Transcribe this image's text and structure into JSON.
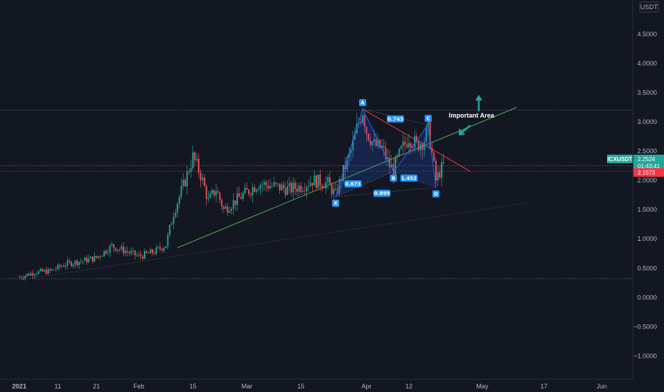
{
  "chart_data": {
    "type": "candlestick",
    "currency": "USDT",
    "ylim": [
      -1.25,
      4.9
    ],
    "y_ticks": [
      "4.5000",
      "4.0000",
      "3.5000",
      "3.0000",
      "2.5000",
      "2.0000",
      "1.5000",
      "1.0000",
      "0.5000",
      "0.0000",
      "−0.5000",
      "−1.0000"
    ],
    "y_tick_values": [
      4.5,
      4.0,
      3.5,
      3.0,
      2.5,
      2.0,
      1.5,
      1.0,
      0.5,
      0.0,
      -0.5,
      -1.0
    ],
    "x_ticks": [
      "2021",
      "11",
      "21",
      "Feb",
      "15",
      "Mar",
      "15",
      "Apr",
      "12",
      "May",
      "17",
      "Jun"
    ],
    "x_tick_days": [
      0,
      10,
      20,
      31,
      45,
      59,
      73,
      90,
      101,
      120,
      136,
      151
    ],
    "x_range_days": [
      -5,
      159
    ],
    "bull_color": "#26a69a",
    "bear_color": "#ef5350",
    "price_tag": {
      "symbol": "ICXUSDT",
      "value": "2.2524",
      "countdown": "01:43:41",
      "color": "#26a69a"
    },
    "red_tag": {
      "value": "2.1573",
      "color": "#f23645"
    },
    "closes": [
      {
        "day": 0,
        "close": 0.35
      },
      {
        "day": 4,
        "close": 0.43
      },
      {
        "day": 8,
        "close": 0.45
      },
      {
        "day": 12,
        "close": 0.57
      },
      {
        "day": 16,
        "close": 0.62
      },
      {
        "day": 20,
        "close": 0.68
      },
      {
        "day": 24,
        "close": 0.88
      },
      {
        "day": 28,
        "close": 0.78
      },
      {
        "day": 31,
        "close": 0.7
      },
      {
        "day": 35,
        "close": 0.78
      },
      {
        "day": 38,
        "close": 0.9
      },
      {
        "day": 40,
        "close": 1.45
      },
      {
        "day": 43,
        "close": 2.0
      },
      {
        "day": 45,
        "close": 2.4
      },
      {
        "day": 47,
        "close": 2.1
      },
      {
        "day": 49,
        "close": 1.65
      },
      {
        "day": 51,
        "close": 1.85
      },
      {
        "day": 53,
        "close": 1.5
      },
      {
        "day": 56,
        "close": 1.65
      },
      {
        "day": 59,
        "close": 1.8
      },
      {
        "day": 62,
        "close": 1.95
      },
      {
        "day": 66,
        "close": 1.9
      },
      {
        "day": 70,
        "close": 1.85
      },
      {
        "day": 73,
        "close": 1.9
      },
      {
        "day": 76,
        "close": 2.0
      },
      {
        "day": 80,
        "close": 1.95
      },
      {
        "day": 82,
        "close": 1.75
      },
      {
        "day": 84,
        "close": 2.15
      },
      {
        "day": 86,
        "close": 2.5
      },
      {
        "day": 88,
        "close": 3.0
      },
      {
        "day": 89,
        "close": 3.2
      },
      {
        "day": 90,
        "close": 2.85
      },
      {
        "day": 92,
        "close": 2.6
      },
      {
        "day": 94,
        "close": 2.55
      },
      {
        "day": 96,
        "close": 2.25
      },
      {
        "day": 97,
        "close": 2.2
      },
      {
        "day": 99,
        "close": 2.5
      },
      {
        "day": 101,
        "close": 2.75
      },
      {
        "day": 103,
        "close": 2.6
      },
      {
        "day": 105,
        "close": 2.7
      },
      {
        "day": 106,
        "close": 2.9
      },
      {
        "day": 107,
        "close": 2.45
      },
      {
        "day": 108,
        "close": 2.0
      },
      {
        "day": 109,
        "close": 2.15
      },
      {
        "day": 110,
        "close": 2.25
      }
    ],
    "harmonic_pattern": {
      "points": [
        {
          "label": "X",
          "day": 82,
          "value": 1.72
        },
        {
          "label": "A",
          "day": 89,
          "value": 3.22
        },
        {
          "label": "B",
          "day": 97,
          "value": 2.15
        },
        {
          "label": "C",
          "day": 106,
          "value": 2.95
        },
        {
          "label": "D",
          "day": 108,
          "value": 1.88
        }
      ],
      "ratios": [
        {
          "value": "0.743",
          "day": 97.5,
          "level": 3.05
        },
        {
          "value": "0.673",
          "day": 86.5,
          "level": 1.94
        },
        {
          "value": "1.452",
          "day": 101,
          "level": 2.04
        },
        {
          "value": "0.899",
          "day": 94,
          "level": 1.78
        }
      ]
    },
    "annotation": "Important  Area",
    "lines": {
      "red_resistance": [
        {
          "day": 89,
          "value": 3.22
        },
        {
          "day": 117,
          "value": 2.15
        }
      ],
      "green_support": [
        {
          "day": 41,
          "value": 0.85
        },
        {
          "day": 129,
          "value": 3.25
        }
      ],
      "lower_support": [
        {
          "day": 0,
          "value": 0.3
        },
        {
          "day": 132,
          "value": 1.62
        }
      ],
      "level_top": 3.2,
      "level_bottom": 0.32,
      "level_red": 2.157,
      "level_teal": 2.252
    }
  }
}
